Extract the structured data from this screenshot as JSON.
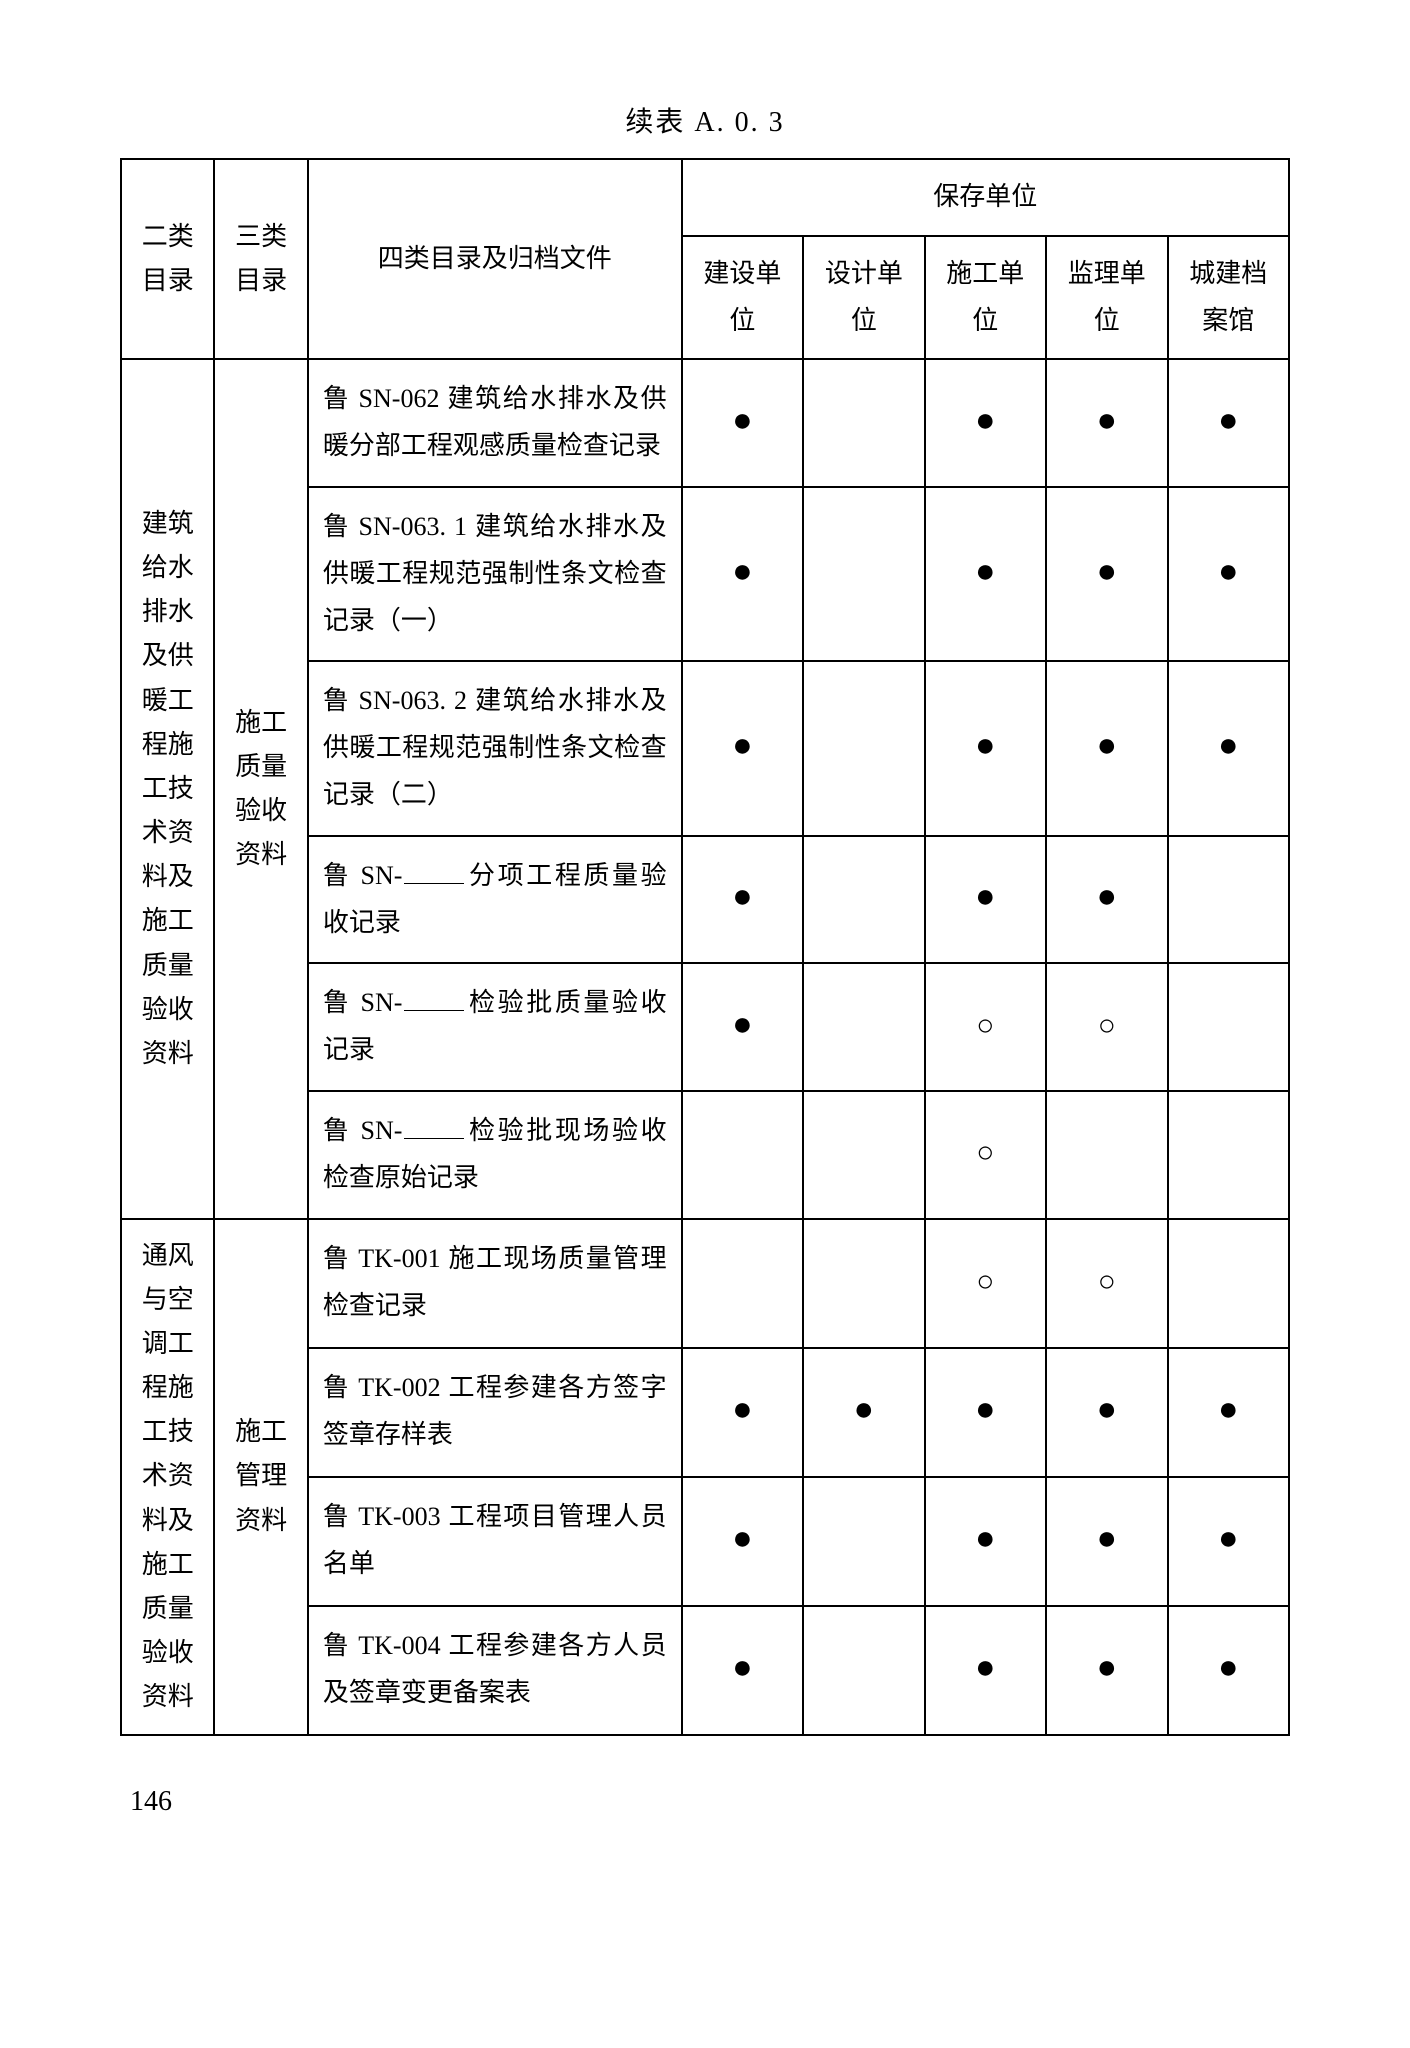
{
  "title": "续表 A. 0. 3",
  "headers": {
    "col1": "二类目录",
    "col2": "三类目录",
    "col3": "四类目录及归档文件",
    "group": "保存单位",
    "sub": [
      "建设单位",
      "设计单位",
      "施工单位",
      "监理单位",
      "城建档案馆"
    ]
  },
  "sections": [
    {
      "cat2": "建筑给水排水及供暖工程施工技术资料及施工质量验收资料",
      "cat3": "施工质量验收资料",
      "rows": [
        {
          "desc": "鲁 SN-062 建筑给水排水及供暖分部工程观感质量检查记录",
          "marks": [
            "●",
            "",
            "●",
            "●",
            "●"
          ]
        },
        {
          "desc": "鲁 SN-063. 1 建筑给水排水及供暖工程规范强制性条文检查记录（一）",
          "marks": [
            "●",
            "",
            "●",
            "●",
            "●"
          ]
        },
        {
          "desc": "鲁 SN-063. 2 建筑给水排水及供暖工程规范强制性条文检查记录（二）",
          "marks": [
            "●",
            "",
            "●",
            "●",
            "●"
          ]
        },
        {
          "desc_pre": "鲁 SN-",
          "desc_post": "分项工程质量验收记录",
          "blank": true,
          "marks": [
            "●",
            "",
            "●",
            "●",
            ""
          ]
        },
        {
          "desc_pre": "鲁 SN-",
          "desc_post": "检验批质量验收记录",
          "blank": true,
          "marks": [
            "●",
            "",
            "○",
            "○",
            ""
          ]
        },
        {
          "desc_pre": "鲁 SN-",
          "desc_post": "检验批现场验收检查原始记录",
          "blank": true,
          "marks": [
            "",
            "",
            "○",
            "",
            ""
          ]
        }
      ]
    },
    {
      "cat2": "通风与空调工程施工技术资料及施工质量验收资料",
      "cat3": "施工管理资料",
      "rows": [
        {
          "desc": "鲁 TK-001 施工现场质量管理检查记录",
          "marks": [
            "",
            "",
            "○",
            "○",
            ""
          ]
        },
        {
          "desc": "鲁 TK-002 工程参建各方签字签章存样表",
          "marks": [
            "●",
            "●",
            "●",
            "●",
            "●"
          ]
        },
        {
          "desc": "鲁 TK-003 工程项目管理人员名单",
          "marks": [
            "●",
            "",
            "●",
            "●",
            "●"
          ]
        },
        {
          "desc": "鲁 TK-004 工程参建各方人员及签章变更备案表",
          "marks": [
            "●",
            "",
            "●",
            "●",
            "●"
          ]
        }
      ]
    }
  ],
  "page_number": "146",
  "symbols": {
    "filled": "●",
    "hollow": "○"
  },
  "style": {
    "border_color": "#000000",
    "background_color": "#ffffff",
    "font_family": "SimSun",
    "base_fontsize": 26,
    "dot_fontsize": 34,
    "circle_fontsize": 30
  }
}
